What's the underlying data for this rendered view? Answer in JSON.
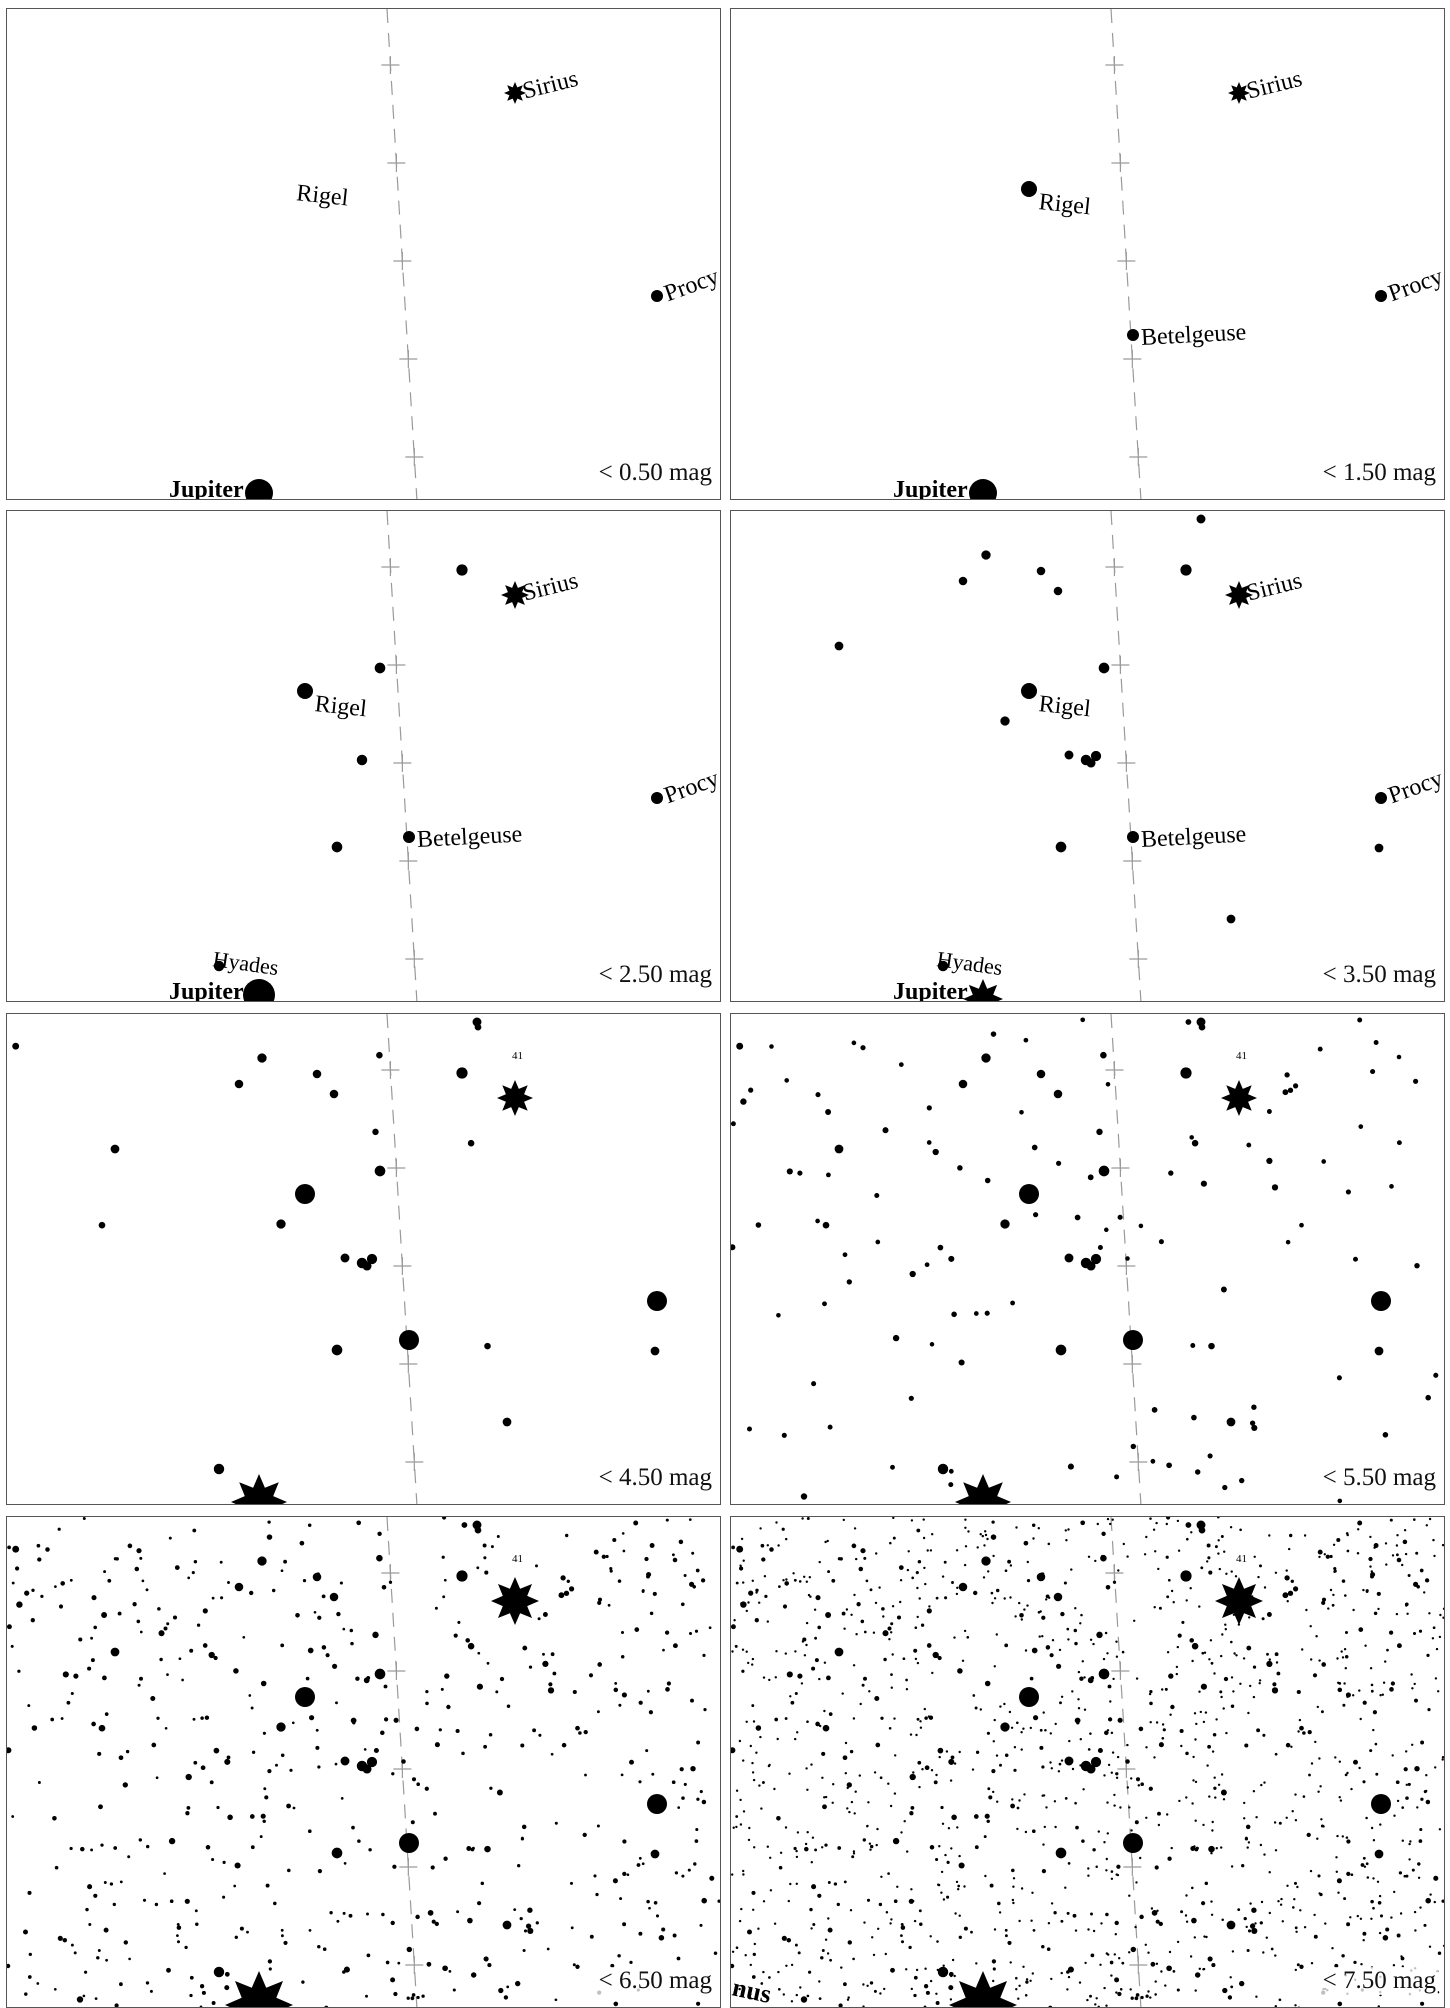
{
  "panels": [
    {
      "mag_label": "< 0.50 mag"
    },
    {
      "mag_label": "< 1.50 mag"
    },
    {
      "mag_label": "< 2.50 mag"
    },
    {
      "mag_label": "< 3.50 mag"
    },
    {
      "mag_label": "< 4.50 mag"
    },
    {
      "mag_label": "< 5.50 mag"
    },
    {
      "mag_label": "< 6.50 mag"
    },
    {
      "mag_label": "< 7.50 mag"
    }
  ],
  "labels": {
    "sirius": "Sirius",
    "rigel": "Rigel",
    "betelgeuse": "Betelgeuse",
    "procyon": "Procy",
    "jupiter": "Jupiter",
    "hyades": "Hyades",
    "uranus": "nus",
    "star_41": "41"
  },
  "colors": {
    "ink": "#000000",
    "ecliptic": "#9a9a9a",
    "frame": "#555555",
    "paper": "#ffffff"
  }
}
